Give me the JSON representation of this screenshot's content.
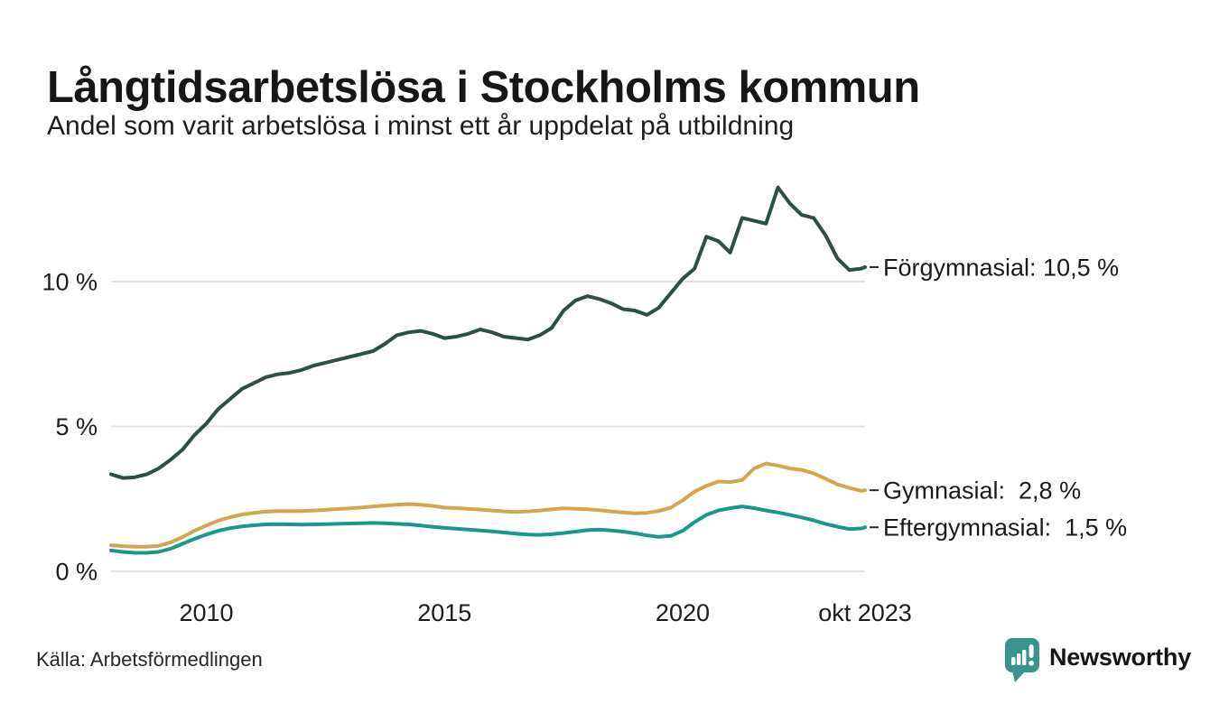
{
  "header": {
    "title": "Långtidsarbetslösa i Stockholms kommun",
    "subtitle": "Andel som varit arbetslösa i minst ett år uppdelat på utbildning"
  },
  "footer": {
    "source": "Källa: Arbetsförmedlingen",
    "brand": "Newsworthy"
  },
  "colors": {
    "forgymnasial": "#2d4f43",
    "gymnasial": "#d6a44c",
    "eftergymnasial": "#17998a",
    "grid": "#e3e3e3",
    "text": "#1c1c1c",
    "connector": "#2a2a2a",
    "brand_teal": "#38948c",
    "background": "#ffffff"
  },
  "chart_data": {
    "type": "line",
    "title": "Långtidsarbetslösa i Stockholms kommun",
    "subtitle": "Andel som varit arbetslösa i minst ett år uppdelat på utbildning",
    "xlabel": "",
    "ylabel": "",
    "x_unit": "decimal_year",
    "xlim": [
      2008.0,
      2023.83
    ],
    "ylim": [
      0,
      13.5
    ],
    "grid": "horizontal",
    "legend_position": "right-end-labels",
    "x": [
      2008.0,
      2008.25,
      2008.5,
      2008.75,
      2009.0,
      2009.25,
      2009.5,
      2009.75,
      2010.0,
      2010.25,
      2010.5,
      2010.75,
      2011.0,
      2011.25,
      2011.5,
      2011.75,
      2012.0,
      2012.25,
      2012.5,
      2012.75,
      2013.0,
      2013.25,
      2013.5,
      2013.75,
      2014.0,
      2014.25,
      2014.5,
      2014.75,
      2015.0,
      2015.25,
      2015.5,
      2015.75,
      2016.0,
      2016.25,
      2016.5,
      2016.75,
      2017.0,
      2017.25,
      2017.5,
      2017.75,
      2018.0,
      2018.25,
      2018.5,
      2018.75,
      2019.0,
      2019.25,
      2019.5,
      2019.75,
      2020.0,
      2020.25,
      2020.5,
      2020.75,
      2021.0,
      2021.25,
      2021.5,
      2021.75,
      2022.0,
      2022.25,
      2022.5,
      2022.75,
      2023.0,
      2023.25,
      2023.5,
      2023.75,
      2023.83
    ],
    "series": [
      {
        "name": "Förgymnasial",
        "color": "#2d4f43",
        "end_label": "Förgymnasial: 10,5 %",
        "end_value_pct": 10.5,
        "values": [
          3.35,
          3.22,
          3.25,
          3.35,
          3.55,
          3.85,
          4.2,
          4.7,
          5.1,
          5.6,
          5.95,
          6.3,
          6.5,
          6.7,
          6.8,
          6.85,
          6.95,
          7.1,
          7.2,
          7.3,
          7.4,
          7.5,
          7.6,
          7.85,
          8.15,
          8.25,
          8.3,
          8.2,
          8.05,
          8.1,
          8.2,
          8.35,
          8.25,
          8.1,
          8.05,
          8.0,
          8.15,
          8.4,
          9.0,
          9.35,
          9.5,
          9.4,
          9.25,
          9.05,
          9.0,
          8.85,
          9.1,
          9.6,
          10.1,
          10.45,
          11.55,
          11.4,
          11.0,
          12.2,
          12.1,
          12.0,
          13.25,
          12.7,
          12.3,
          12.2,
          11.6,
          10.8,
          10.4,
          10.45,
          10.5
        ]
      },
      {
        "name": "Gymnasial",
        "color": "#d6a44c",
        "end_label": "Gymnasial:  2,8 %",
        "end_value_pct": 2.8,
        "values": [
          0.9,
          0.87,
          0.85,
          0.85,
          0.88,
          1.0,
          1.18,
          1.4,
          1.58,
          1.75,
          1.87,
          1.96,
          2.02,
          2.06,
          2.08,
          2.08,
          2.08,
          2.1,
          2.12,
          2.15,
          2.17,
          2.2,
          2.24,
          2.27,
          2.3,
          2.32,
          2.3,
          2.26,
          2.2,
          2.18,
          2.16,
          2.13,
          2.1,
          2.07,
          2.05,
          2.07,
          2.1,
          2.14,
          2.17,
          2.16,
          2.14,
          2.11,
          2.07,
          2.03,
          2.0,
          2.02,
          2.08,
          2.2,
          2.45,
          2.75,
          2.95,
          3.1,
          3.08,
          3.15,
          3.55,
          3.72,
          3.65,
          3.55,
          3.5,
          3.38,
          3.2,
          3.0,
          2.88,
          2.78,
          2.8
        ]
      },
      {
        "name": "Eftergymnasial",
        "color": "#17998a",
        "end_label": "Eftergymnasial:  1,5 %",
        "end_value_pct": 1.5,
        "values": [
          0.72,
          0.67,
          0.64,
          0.64,
          0.67,
          0.78,
          0.95,
          1.12,
          1.27,
          1.4,
          1.49,
          1.55,
          1.59,
          1.62,
          1.63,
          1.62,
          1.61,
          1.62,
          1.63,
          1.64,
          1.65,
          1.66,
          1.67,
          1.66,
          1.64,
          1.62,
          1.58,
          1.54,
          1.5,
          1.47,
          1.44,
          1.41,
          1.38,
          1.34,
          1.3,
          1.27,
          1.26,
          1.28,
          1.32,
          1.37,
          1.42,
          1.44,
          1.41,
          1.37,
          1.31,
          1.24,
          1.19,
          1.22,
          1.4,
          1.7,
          1.95,
          2.1,
          2.18,
          2.24,
          2.18,
          2.1,
          2.03,
          1.95,
          1.86,
          1.76,
          1.64,
          1.54,
          1.46,
          1.48,
          1.52
        ]
      }
    ],
    "y_ticks": [
      {
        "label": "0 %",
        "value": 0
      },
      {
        "label": "5 %",
        "value": 5
      },
      {
        "label": "10 %",
        "value": 10
      }
    ],
    "x_ticks": [
      {
        "label": "2010",
        "value": 2010
      },
      {
        "label": "2015",
        "value": 2015
      },
      {
        "label": "2020",
        "value": 2020
      },
      {
        "label": "okt 2023",
        "value": 2023.83
      }
    ]
  }
}
